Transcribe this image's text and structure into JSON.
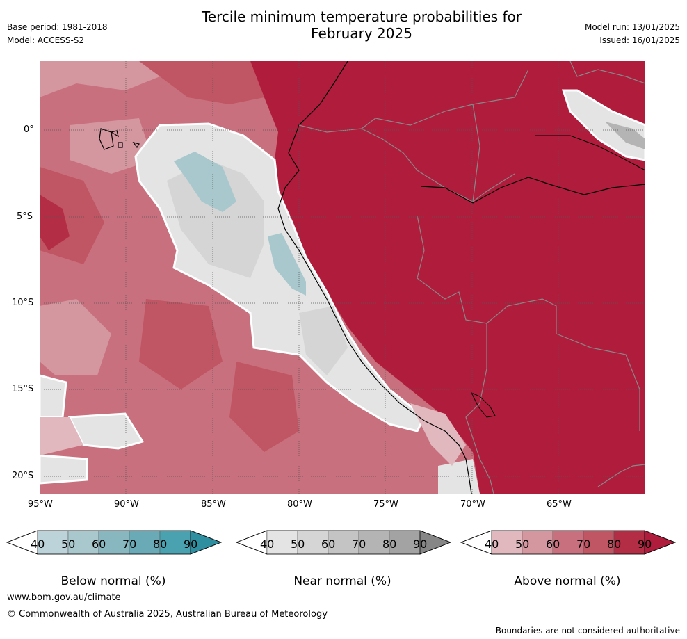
{
  "title_line1": "Tercile minimum temperature probabilities for",
  "title_line2": "February 2025",
  "meta_left": {
    "base_period": "Base period: 1981-2018",
    "model": "Model: ACCESS-S2"
  },
  "meta_right": {
    "model_run": "Model run: 13/01/2025",
    "issued": "Issued: 16/01/2025"
  },
  "map": {
    "lon_ticks": [
      "95°W",
      "90°W",
      "85°W",
      "80°W",
      "75°W",
      "70°W",
      "65°W"
    ],
    "lat_ticks": [
      "0°",
      "5°S",
      "10°S",
      "15°S",
      "20°S"
    ]
  },
  "colorbars": [
    {
      "id": "below",
      "label": "Below normal (%)",
      "ticks": [
        "40",
        "50",
        "60",
        "70",
        "80",
        "90"
      ],
      "colors": [
        "#ffffff",
        "#bcd4d9",
        "#a8c8cd",
        "#88b7c0",
        "#6aaab6",
        "#4aa1b0",
        "#2e8fa1"
      ]
    },
    {
      "id": "near",
      "label": "Near normal (%)",
      "ticks": [
        "40",
        "50",
        "60",
        "70",
        "80",
        "90"
      ],
      "colors": [
        "#ffffff",
        "#e4e4e4",
        "#d5d5d5",
        "#c4c4c4",
        "#b4b4b4",
        "#a3a3a3",
        "#868686"
      ]
    },
    {
      "id": "above",
      "label": "Above normal (%)",
      "ticks": [
        "40",
        "50",
        "60",
        "70",
        "80",
        "90"
      ],
      "colors": [
        "#ffffff",
        "#e0b8bd",
        "#d4979f",
        "#c8707d",
        "#c05563",
        "#b32d45",
        "#b01c3c"
      ]
    }
  ],
  "footer": {
    "url": "www.bom.gov.au/climate",
    "copyright": "© Commonwealth of Australia 2025, Australian Bureau of Meteorology",
    "disclaimer": "Boundaries are not considered authoritative"
  }
}
